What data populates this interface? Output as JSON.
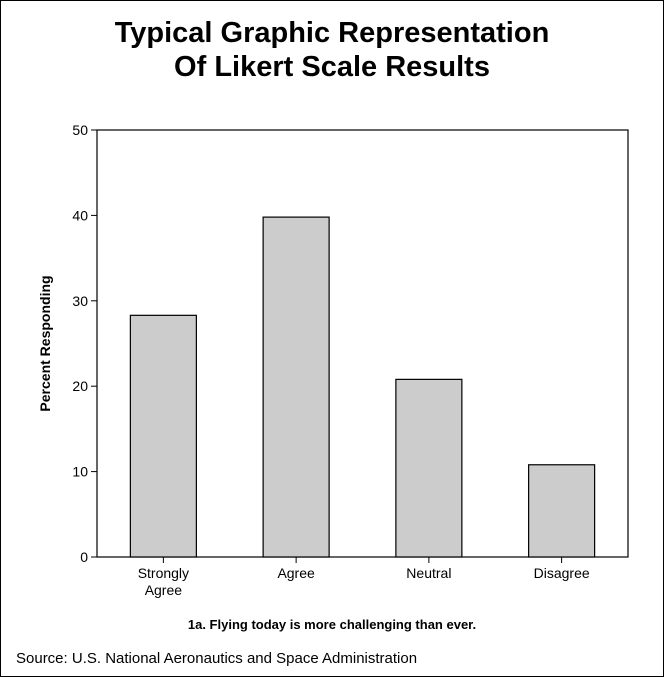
{
  "title_lines": [
    "Typical Graphic Representation",
    "Of Likert Scale Results"
  ],
  "caption": "1a. Flying today is more challenging than ever.",
  "source": "Source: U.S. National Aeronautics and Space Administration",
  "colors": {
    "bar_fill": "#cccccc",
    "bar_stroke": "#000000",
    "background": "#ffffff"
  },
  "chart_data": {
    "type": "bar",
    "title": "Typical Graphic Representation Of Likert Scale Results",
    "categories": [
      [
        "Strongly",
        "Agree"
      ],
      [
        "Agree"
      ],
      [
        "Neutral"
      ],
      [
        "Disagree"
      ]
    ],
    "values": [
      28.3,
      39.8,
      20.8,
      10.8
    ],
    "ylabel": "Percent Responding",
    "xlabel": "1a. Flying today is more challenging than ever.",
    "ylim": [
      0,
      50
    ],
    "yticks": [
      0,
      10,
      20,
      30,
      40,
      50
    ],
    "grid": false,
    "legend": "none"
  }
}
